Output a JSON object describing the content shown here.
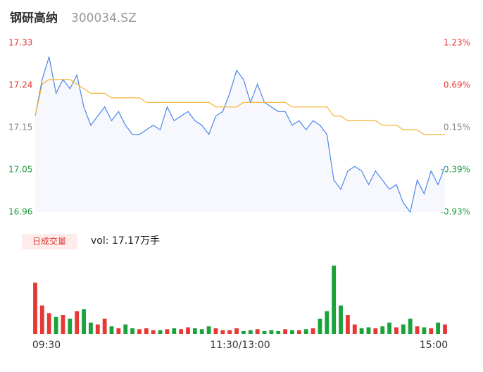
{
  "chart_data": {
    "type": "intraday",
    "title": "钢研高纳",
    "subtitle": "300034.SZ",
    "x_labels": [
      "09:30",
      "11:30/13:00",
      "15:00"
    ],
    "ylim": [
      16.96,
      17.33
    ],
    "yticks": [
      17.33,
      {
        "value": 17.2375,
        "label": "17.24"
      },
      {
        "value": 17.145,
        "label": "17.15"
      },
      {
        "value": 17.0525,
        "label": "17.05"
      },
      16.96
    ],
    "y2lim": [
      -0.93,
      1.23
    ],
    "y2ticks": [
      {
        "value": 1.23,
        "label": "1.23%"
      },
      {
        "value": 0.69,
        "label": "0.69%"
      },
      {
        "value": 0.15,
        "label": "0.15%"
      },
      {
        "value": -0.39,
        "label": "-0.39%"
      },
      {
        "value": -0.93,
        "label": "-0.93%"
      }
    ],
    "series": [
      {
        "name": "price",
        "color": "#4f86e8",
        "values": [
          17.17,
          17.25,
          17.3,
          17.22,
          17.25,
          17.23,
          17.26,
          17.19,
          17.15,
          17.17,
          17.19,
          17.16,
          17.18,
          17.15,
          17.13,
          17.13,
          17.14,
          17.15,
          17.14,
          17.19,
          17.16,
          17.17,
          17.18,
          17.16,
          17.15,
          17.13,
          17.17,
          17.18,
          17.22,
          17.27,
          17.25,
          17.2,
          17.24,
          17.2,
          17.19,
          17.18,
          17.18,
          17.15,
          17.16,
          17.14,
          17.16,
          17.15,
          17.13,
          17.03,
          17.01,
          17.05,
          17.06,
          17.05,
          17.02,
          17.05,
          17.03,
          17.01,
          17.02,
          16.98,
          16.96,
          17.03,
          17.0,
          17.05,
          17.02,
          17.06
        ]
      },
      {
        "name": "average",
        "color": "#f5b431",
        "values": [
          17.17,
          17.24,
          17.25,
          17.25,
          17.25,
          17.25,
          17.24,
          17.23,
          17.22,
          17.22,
          17.22,
          17.21,
          17.21,
          17.21,
          17.21,
          17.21,
          17.2,
          17.2,
          17.2,
          17.2,
          17.2,
          17.2,
          17.2,
          17.2,
          17.2,
          17.2,
          17.19,
          17.19,
          17.19,
          17.19,
          17.2,
          17.2,
          17.2,
          17.2,
          17.2,
          17.2,
          17.2,
          17.19,
          17.19,
          17.19,
          17.19,
          17.19,
          17.19,
          17.17,
          17.17,
          17.16,
          17.16,
          17.16,
          17.16,
          17.16,
          17.15,
          17.15,
          17.15,
          17.14,
          17.14,
          17.14,
          17.13,
          17.13,
          17.13,
          17.13
        ]
      }
    ],
    "volume_legend": "日成交量",
    "volume_label": "vol: 17.17万手",
    "volume": [
      2700,
      1500,
      1100,
      900,
      1000,
      800,
      1200,
      1300,
      600,
      500,
      800,
      400,
      300,
      500,
      300,
      250,
      300,
      200,
      200,
      250,
      300,
      250,
      350,
      300,
      250,
      400,
      300,
      200,
      200,
      300,
      150,
      200,
      250,
      150,
      200,
      150,
      250,
      200,
      200,
      250,
      300,
      800,
      1200,
      3600,
      1500,
      1000,
      500,
      300,
      350,
      300,
      400,
      600,
      350,
      500,
      800,
      400,
      350,
      300,
      600,
      500
    ]
  }
}
